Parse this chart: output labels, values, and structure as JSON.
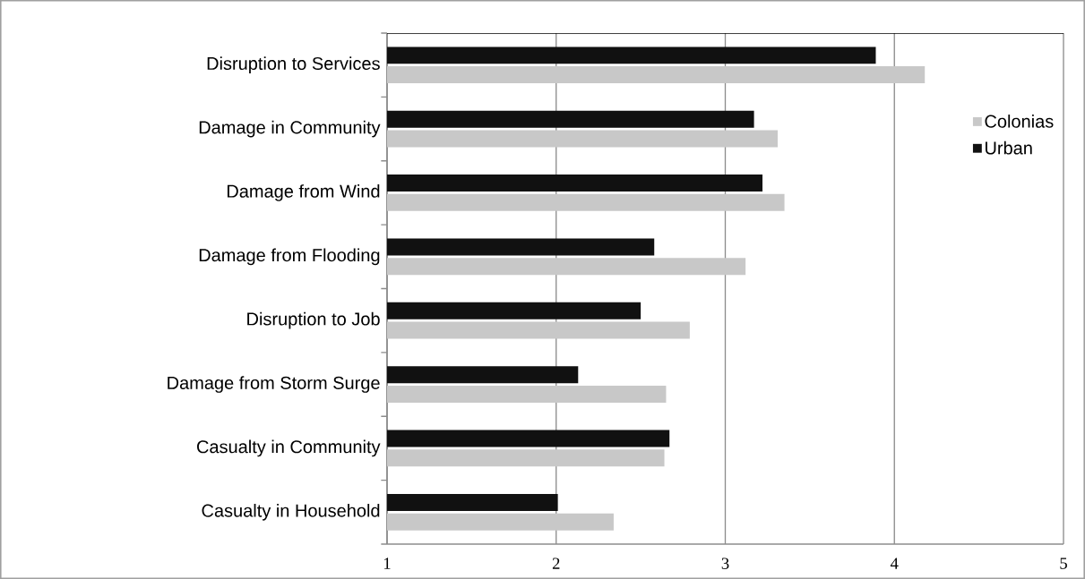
{
  "chart_data": {
    "type": "bar",
    "orientation": "horizontal",
    "categories": [
      "Disruption to Services",
      "Damage in Community",
      "Damage from Wind",
      "Damage from Flooding",
      "Disruption to Job",
      "Damage from Storm Surge",
      "Casualty in Community",
      "Casualty in Household"
    ],
    "series": [
      {
        "name": "Colonias",
        "color": "#c8c8c8",
        "values": [
          4.18,
          3.31,
          3.35,
          3.12,
          2.79,
          2.65,
          2.64,
          2.34
        ]
      },
      {
        "name": "Urban",
        "color": "#111111",
        "values": [
          3.89,
          3.17,
          3.22,
          2.58,
          2.5,
          2.13,
          2.67,
          2.01
        ]
      }
    ],
    "xlim": [
      1,
      5
    ],
    "xticks": [
      1,
      2,
      3,
      4,
      5
    ],
    "grid": "x",
    "legend": "right"
  }
}
